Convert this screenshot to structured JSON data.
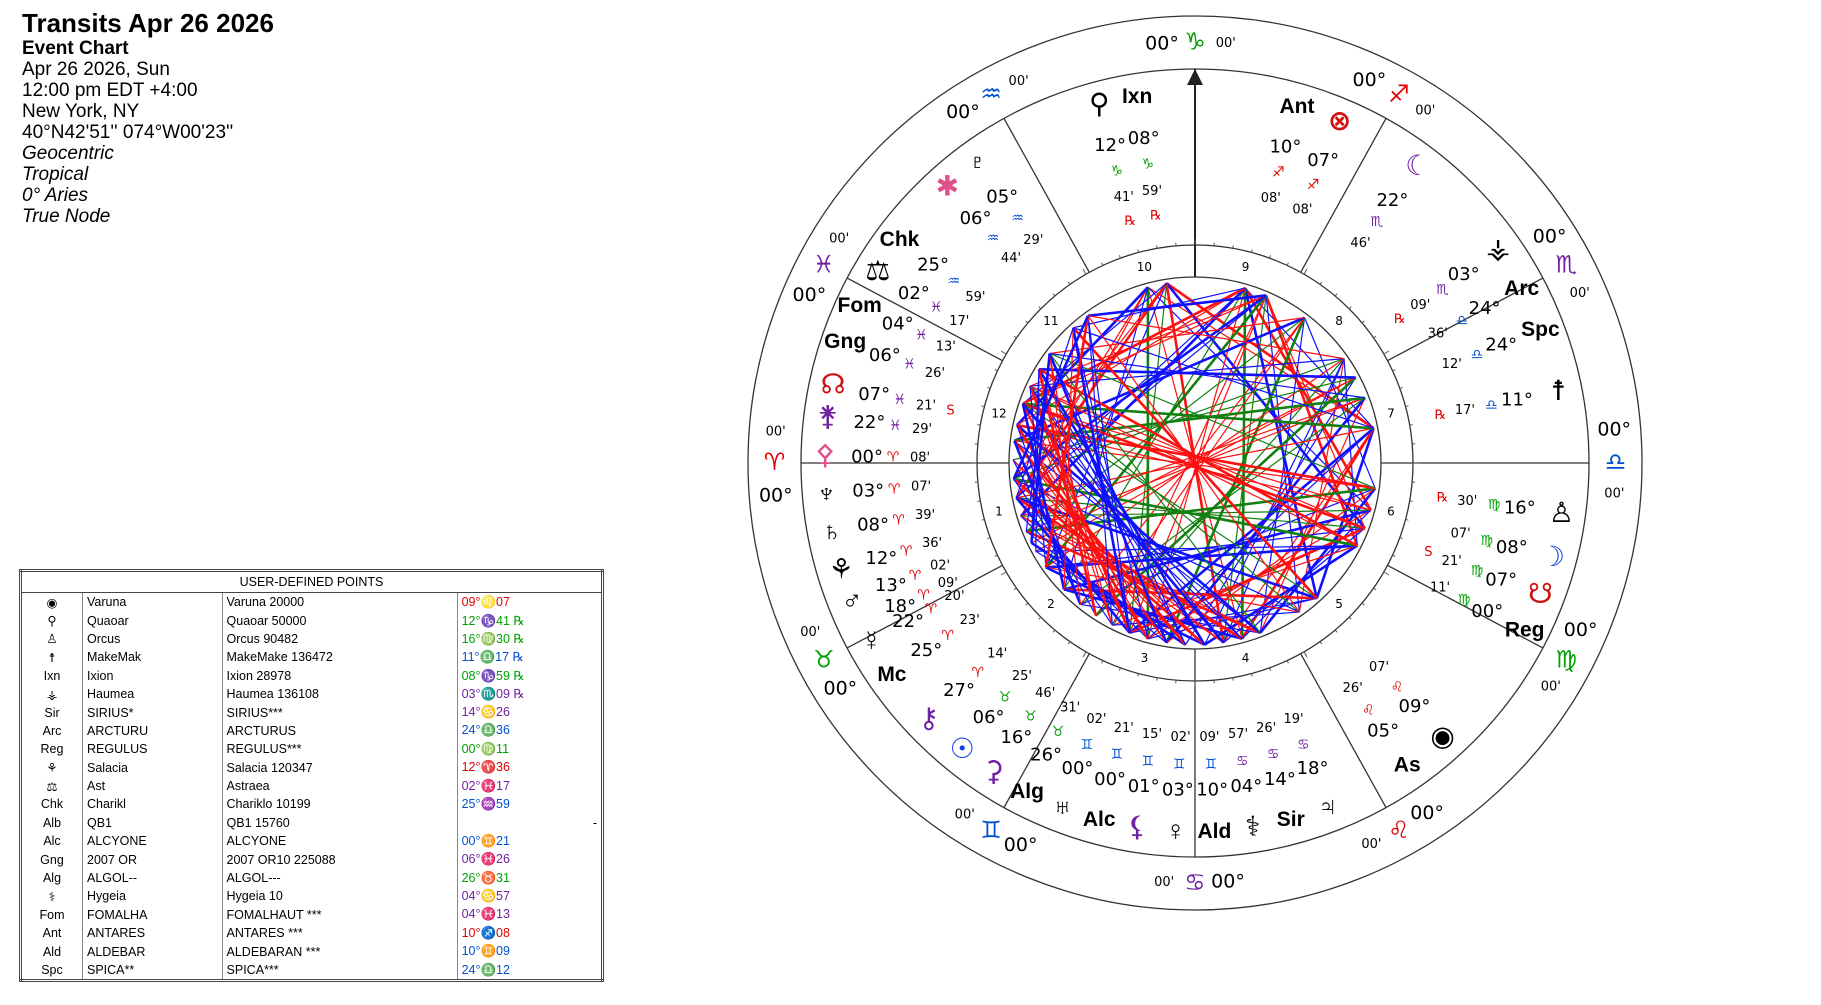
{
  "header": {
    "title": "Transits Apr 26 2026",
    "subtitle": "Event Chart",
    "lines": [
      "Apr 26 2026, Sun",
      "12:00 pm  EDT +4:00",
      "New York, NY",
      "40°N42'51'' 074°W00'23''"
    ],
    "settings": [
      "Geocentric",
      "Tropical",
      "0° Aries",
      "True Node"
    ]
  },
  "sign_colors": {
    "♈": "#e00000",
    "♉": "#00a000",
    "♊": "#0050d0",
    "♋": "#7020a0",
    "♌": "#e00000",
    "♍": "#00a000",
    "♎": "#0050d0",
    "♏": "#7020a0",
    "♐": "#e00000",
    "♑": "#00a000",
    "♒": "#0050d0",
    "♓": "#7020a0"
  },
  "wheel": {
    "house_numbers": [
      "1",
      "2",
      "3",
      "4",
      "5",
      "6",
      "7",
      "8",
      "9",
      "10",
      "11",
      "12"
    ],
    "cusps": [
      {
        "deg": "00°",
        "sign": "♈",
        "min": "00'"
      },
      {
        "deg": "00°",
        "sign": "♉",
        "min": "00'"
      },
      {
        "deg": "00°",
        "sign": "♊",
        "min": "00'"
      },
      {
        "deg": "00°",
        "sign": "♋",
        "min": "00'"
      },
      {
        "deg": "00°",
        "sign": "♌",
        "min": "00'"
      },
      {
        "deg": "00°",
        "sign": "♍",
        "min": "00'"
      },
      {
        "deg": "00°",
        "sign": "♎",
        "min": "00'"
      },
      {
        "deg": "00°",
        "sign": "♏",
        "min": "00'"
      },
      {
        "deg": "00°",
        "sign": "♐",
        "min": "00'"
      },
      {
        "deg": "00°",
        "sign": "♑",
        "min": "00'"
      },
      {
        "deg": "00°",
        "sign": "♒",
        "min": "00'"
      },
      {
        "deg": "00°",
        "sign": "♓",
        "min": "00'"
      }
    ],
    "planets": [
      {
        "glyph": "⚲",
        "deg": "12°",
        "sign": "♑",
        "min": "41'",
        "flag": "℞"
      },
      {
        "glyph": "Ixn",
        "deg": "08°",
        "sign": "♑",
        "min": "59'",
        "flag": "℞"
      },
      {
        "glyph": "Ant",
        "deg": "10°",
        "sign": "♐",
        "min": "08'"
      },
      {
        "glyph": "⊗",
        "color": "#d01010",
        "deg": "07°",
        "sign": "♐",
        "min": "08'"
      },
      {
        "glyph": "☾",
        "color": "#7020a0",
        "deg": "22°",
        "sign": "♏",
        "min": "46'"
      },
      {
        "glyph": "⚶",
        "deg": "03°",
        "sign": "♏",
        "min": "09'",
        "flag": "℞"
      },
      {
        "glyph": "Arc",
        "deg": "24°",
        "sign": "♎",
        "min": "36'"
      },
      {
        "glyph": "Spc",
        "deg": "24°",
        "sign": "♎",
        "min": "12'"
      },
      {
        "glyph": "☨",
        "deg": "11°",
        "sign": "♎",
        "min": "17'",
        "flag": "℞"
      },
      {
        "glyph": "♙",
        "deg": "16°",
        "sign": "♍",
        "min": "30'",
        "flag": "℞"
      },
      {
        "glyph": "☽",
        "color": "#1040e0",
        "deg": "08°",
        "sign": "♍",
        "min": "07'"
      },
      {
        "glyph": "☋",
        "color": "#d01010",
        "deg": "07°",
        "sign": "♍",
        "min": "21'",
        "flag": "S"
      },
      {
        "glyph": "Reg",
        "deg": "00°",
        "sign": "♍",
        "min": "11'"
      },
      {
        "glyph": "◉",
        "deg": "09°",
        "sign": "♌",
        "min": "07'"
      },
      {
        "glyph": "As",
        "deg": "05°",
        "sign": "♌",
        "min": "26'"
      },
      {
        "glyph": "♃",
        "deg": "18°",
        "sign": "♋",
        "min": "19'"
      },
      {
        "glyph": "Sir",
        "deg": "14°",
        "sign": "♋",
        "min": "26'"
      },
      {
        "glyph": "⚕",
        "deg": "04°",
        "sign": "♋",
        "min": "57'"
      },
      {
        "glyph": "Ald",
        "deg": "10°",
        "sign": "♊",
        "min": "09'"
      },
      {
        "glyph": "♀",
        "deg": "03°",
        "sign": "♊",
        "min": "02'"
      },
      {
        "glyph": "⚸",
        "color": "#7020a0",
        "deg": "01°",
        "sign": "♊",
        "min": "15'"
      },
      {
        "glyph": "Alc",
        "deg": "00°",
        "sign": "♊",
        "min": "21'"
      },
      {
        "glyph": "♅",
        "deg": "00°",
        "sign": "♊",
        "min": "02'"
      },
      {
        "glyph": "Alg",
        "deg": "26°",
        "sign": "♉",
        "min": "31'"
      },
      {
        "glyph": "⚳",
        "color": "#7020a0",
        "deg": "16°",
        "sign": "♉",
        "min": "46'"
      },
      {
        "glyph": "☉",
        "color": "#1040e0",
        "deg": "06°",
        "sign": "♉",
        "min": "25'"
      },
      {
        "glyph": "⚷",
        "color": "#7020a0",
        "deg": "27°",
        "sign": "♈",
        "min": "14'"
      },
      {
        "glyph": "Mc",
        "deg": "25°",
        "sign": "♈",
        "min": "23'"
      },
      {
        "glyph": "☿",
        "deg": "22°",
        "sign": "♈",
        "min": "20'"
      },
      {
        "deg": "18°",
        "sign": "♈",
        "min": "09'"
      },
      {
        "glyph": "♂",
        "deg": "13°",
        "sign": "♈",
        "min": "02'"
      },
      {
        "glyph": "⚘",
        "deg": "12°",
        "sign": "♈",
        "min": "36'"
      },
      {
        "glyph": "♄",
        "deg": "08°",
        "sign": "♈",
        "min": "39'"
      },
      {
        "glyph": "♆",
        "deg": "03°",
        "sign": "♈",
        "min": "07'"
      },
      {
        "glyph": "⚴",
        "color": "#e0508c",
        "deg": "00°",
        "sign": "♈",
        "min": "08'"
      },
      {
        "glyph": "⚵",
        "color": "#7020a0",
        "deg": "22°",
        "sign": "♓",
        "min": "29'"
      },
      {
        "glyph": "☊",
        "color": "#d01010",
        "deg": "07°",
        "sign": "♓",
        "min": "21'",
        "flag": "S"
      },
      {
        "glyph": "Gng",
        "deg": "06°",
        "sign": "♓",
        "min": "26'"
      },
      {
        "glyph": "Fom",
        "deg": "04°",
        "sign": "♓",
        "min": "13'"
      },
      {
        "glyph": "⚖",
        "deg": "02°",
        "sign": "♓",
        "min": "17'"
      },
      {
        "glyph": "Chk",
        "deg": "25°",
        "sign": "♒",
        "min": "59'"
      },
      {
        "glyph": "✱",
        "color": "#e0508c",
        "deg": "06°",
        "sign": "♒",
        "min": "44'"
      },
      {
        "glyph": "♇",
        "deg": "05°",
        "sign": "♒",
        "min": "29'"
      }
    ]
  },
  "table": {
    "title": "USER-DEFINED POINTS",
    "rows": [
      [
        "◉",
        "Varuna",
        "Varuna 20000",
        "09°♌07"
      ],
      [
        "⚲",
        "Quaoar",
        "Quaoar 50000",
        "12°♑41 ℞"
      ],
      [
        "♙",
        "Orcus",
        "Orcus 90482",
        "16°♍30 ℞"
      ],
      [
        "☨",
        "MakeMak",
        "MakeMake 136472",
        "11°♎17 ℞"
      ],
      [
        "Ixn",
        "Ixion",
        "Ixion 28978",
        "08°♑59 ℞"
      ],
      [
        "⚶",
        "Haumea",
        "Haumea 136108",
        "03°♏09 ℞"
      ],
      [
        "Sir",
        "SIRIUS*",
        "SIRIUS***",
        "14°♋26"
      ],
      [
        "Arc",
        "ARCTURU",
        "ARCTURUS",
        "24°♎36"
      ],
      [
        "Reg",
        "REGULUS",
        "REGULUS***",
        "00°♍11"
      ],
      [
        "⚘",
        "Salacia",
        "Salacia 120347",
        "12°♈36"
      ],
      [
        "⚖",
        "Ast",
        "Astraea",
        "02°♓17"
      ],
      [
        "Chk",
        "Charikl",
        "Chariklo 10199",
        "25°♒59"
      ],
      [
        "Alb",
        "QB1",
        "QB1 15760",
        "-"
      ],
      [
        "Alc",
        "ALCYONE",
        "ALCYONE",
        "00°♊21"
      ],
      [
        "Gng",
        "2007 OR",
        "2007 OR10 225088",
        "06°♓26"
      ],
      [
        "Alg",
        "ALGOL--",
        "ALGOL---",
        "26°♉31"
      ],
      [
        "⚕",
        "Hygeia",
        "Hygeia 10",
        "04°♋57"
      ],
      [
        "Fom",
        "FOMALHA",
        "FOMALHAUT ***",
        "04°♓13"
      ],
      [
        "Ant",
        "ANTARES",
        "ANTARES ***",
        "10°♐08"
      ],
      [
        "Ald",
        "ALDEBAR",
        "ALDEBARAN ***",
        "10°♊09"
      ],
      [
        "Spc",
        "SPICA**",
        "SPICA***",
        "24°♎12"
      ]
    ]
  }
}
